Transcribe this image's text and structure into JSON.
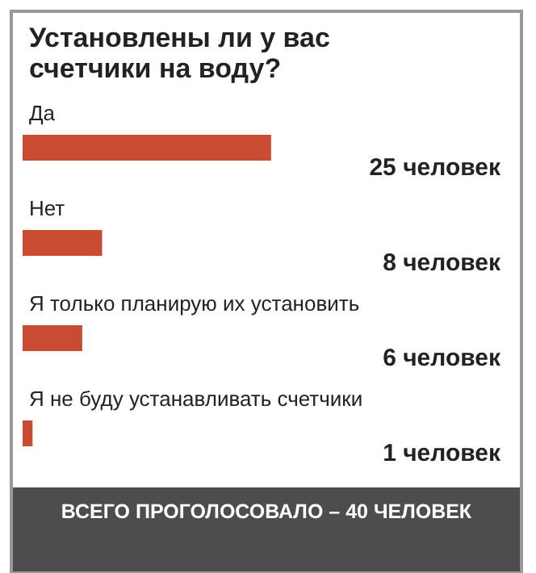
{
  "chart_data": {
    "type": "bar",
    "orientation": "horizontal",
    "title": "Установлены ли у вас счетчики на воду?",
    "categories": [
      "Да",
      "Нет",
      "Я только планирую их установить",
      "Я не буду устанавливать счетчики"
    ],
    "values": [
      25,
      8,
      6,
      1
    ],
    "value_labels": [
      "25 человек",
      "8 человек",
      "6 человек",
      "1 человек"
    ],
    "color": "#c84b32",
    "annotations": [
      "ВСЕГО ПРОГОЛОСОВАЛО –  40 ЧЕЛОВЕК"
    ]
  }
}
